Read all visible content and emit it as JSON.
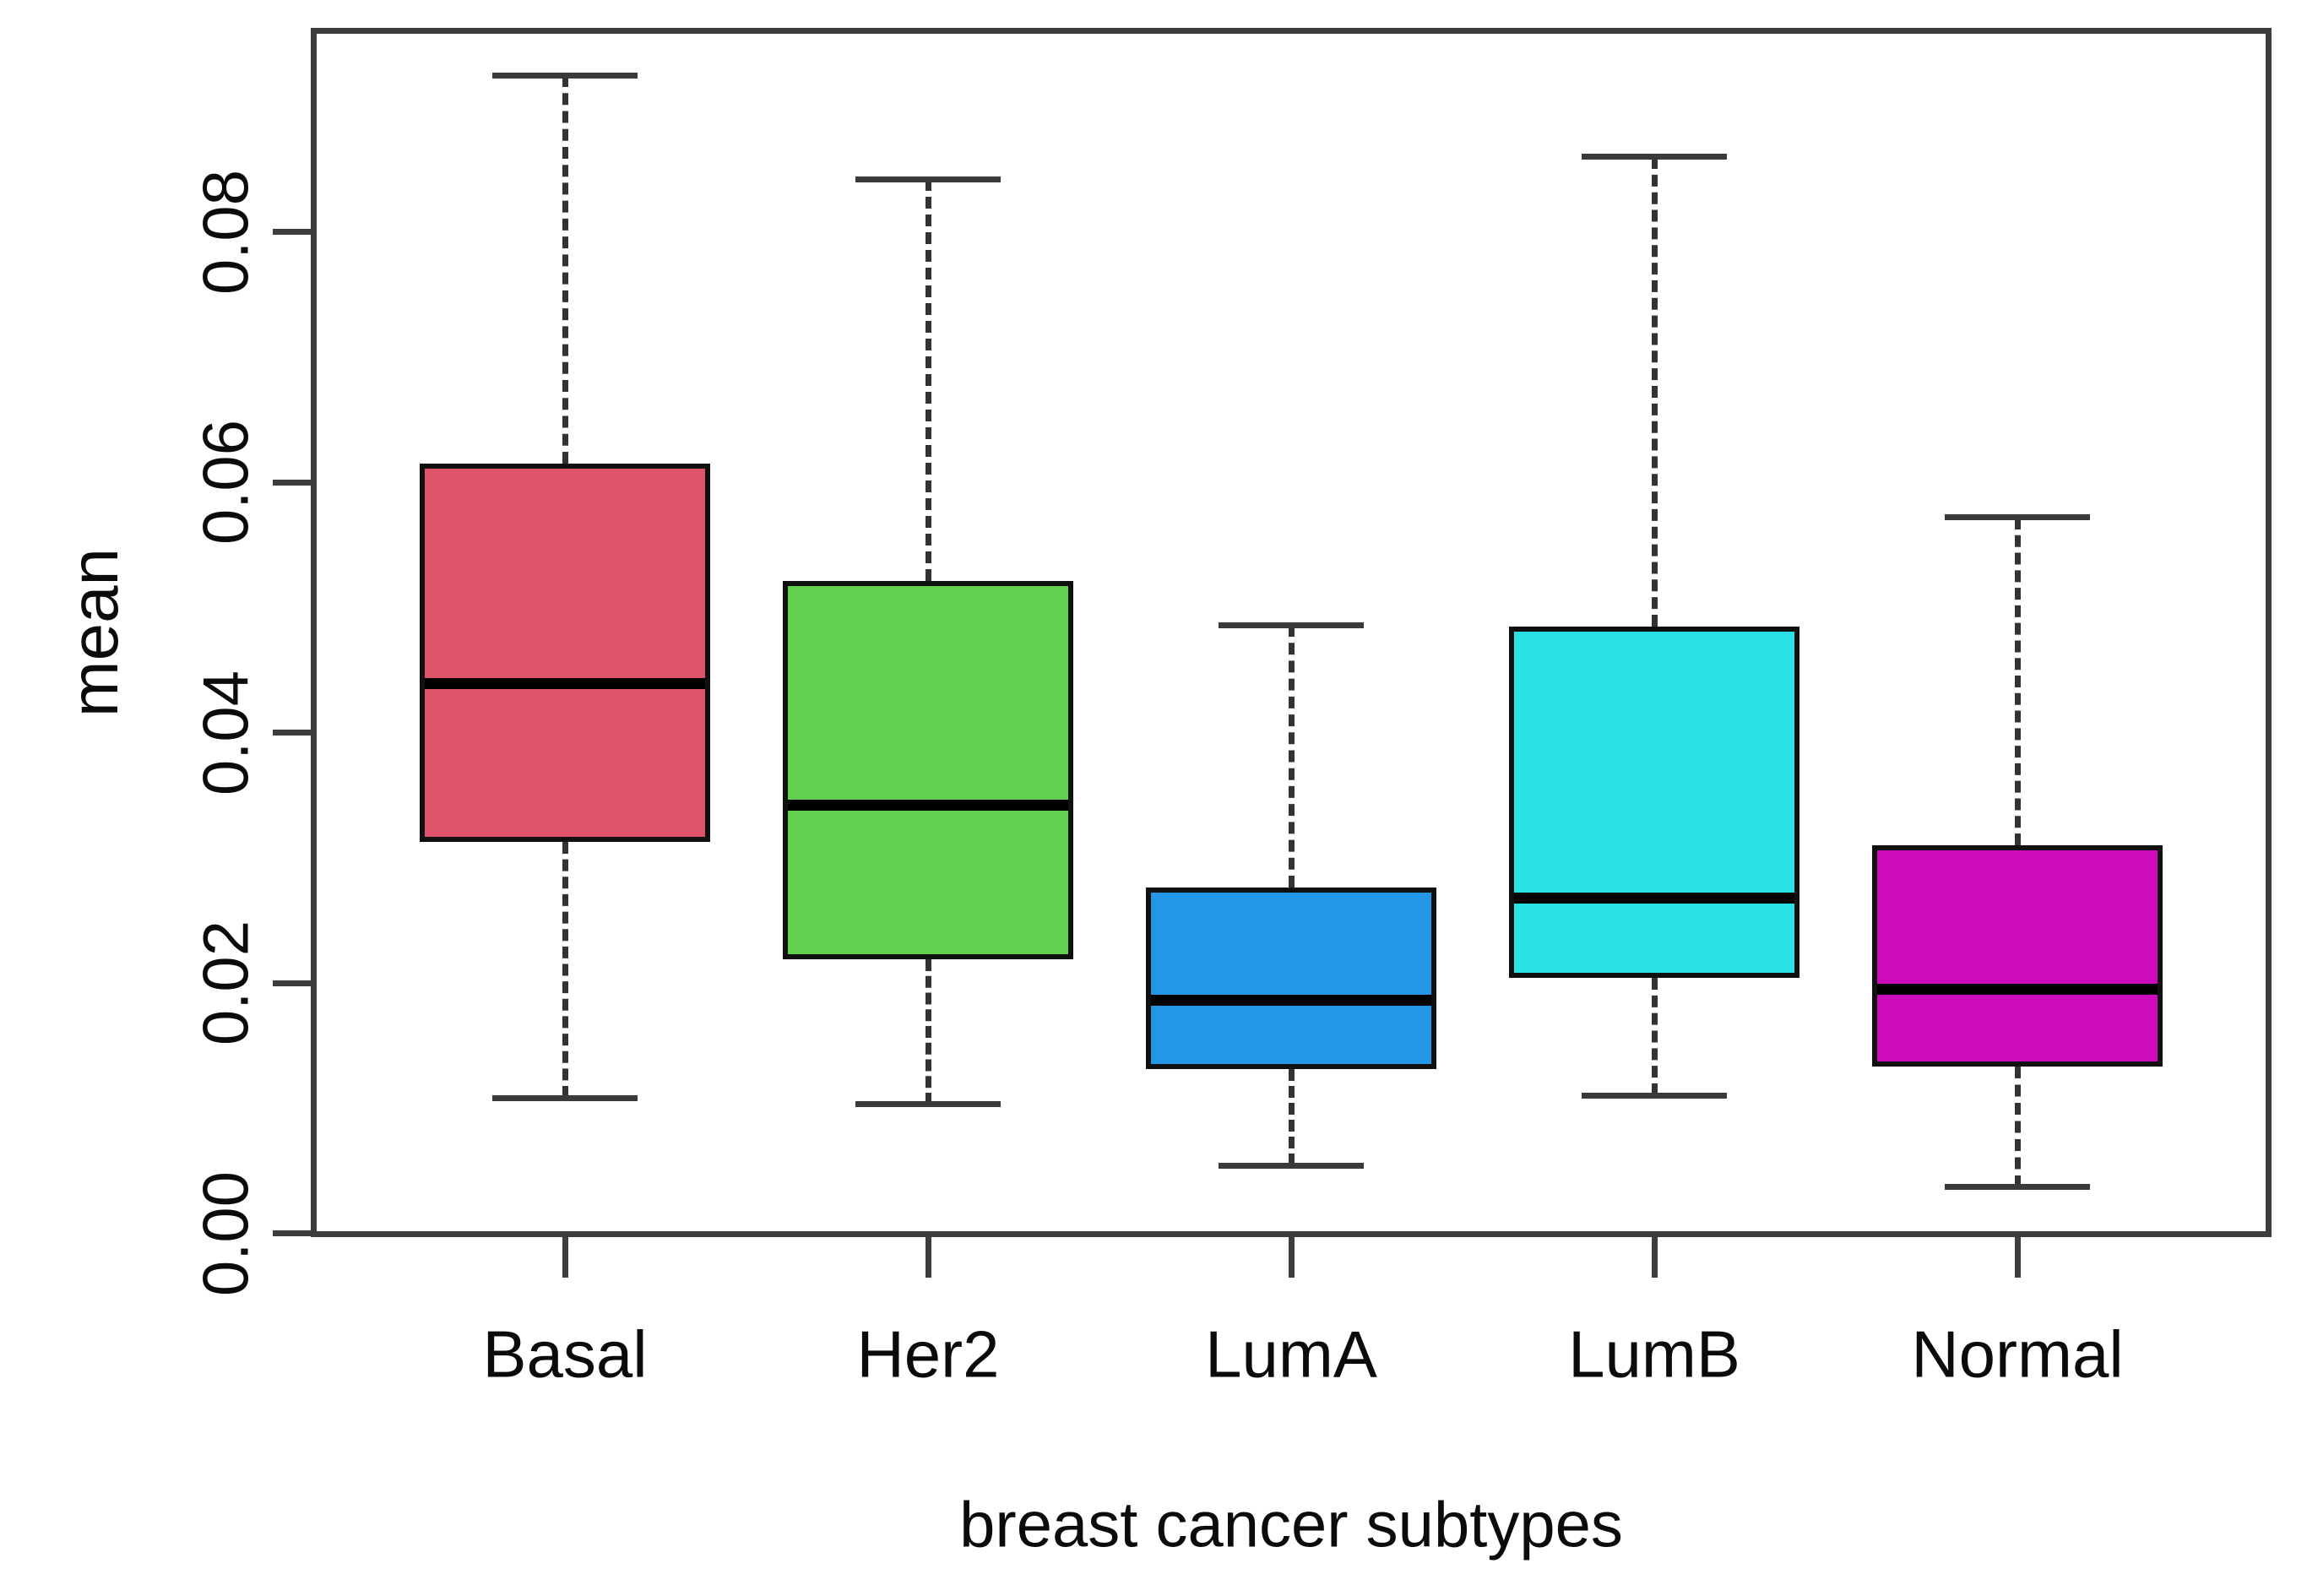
{
  "chart_data": {
    "type": "boxplot",
    "title": "",
    "xlabel": "breast cancer subtypes",
    "ylabel": "mean",
    "categories": [
      "Basal",
      "Her2",
      "LumA",
      "LumB",
      "Normal"
    ],
    "y_ticks": [
      "0.00",
      "0.02",
      "0.04",
      "0.06",
      "0.08"
    ],
    "y_tick_values": [
      0.0,
      0.02,
      0.04,
      0.06,
      0.08
    ],
    "ylim": [
      -0.0003,
      0.0963
    ],
    "grid": false,
    "legend": "none",
    "orientation": "vertical",
    "series": [
      {
        "name": "Basal",
        "color": "#DF536B",
        "whisker_low": 0.0108,
        "q1": 0.0313,
        "median": 0.0439,
        "q3": 0.0615,
        "whisker_high": 0.0925
      },
      {
        "name": "Her2",
        "color": "#61D04F",
        "whisker_low": 0.0103,
        "q1": 0.0219,
        "median": 0.0342,
        "q3": 0.0521,
        "whisker_high": 0.0842
      },
      {
        "name": "LumA",
        "color": "#2297E6",
        "whisker_low": 0.0054,
        "q1": 0.0131,
        "median": 0.0186,
        "q3": 0.0276,
        "whisker_high": 0.0486
      },
      {
        "name": "LumB",
        "color": "#28E2E5",
        "whisker_low": 0.011,
        "q1": 0.0204,
        "median": 0.0268,
        "q3": 0.0485,
        "whisker_high": 0.086
      },
      {
        "name": "Normal",
        "color": "#CD0BBC",
        "whisker_low": 0.0037,
        "q1": 0.0133,
        "median": 0.0195,
        "q3": 0.031,
        "whisker_high": 0.0572
      }
    ],
    "frame_color": "#3d3d3d",
    "whisker_color": "#333333",
    "median_color": "#000000",
    "text_color": "#0b0b0b"
  }
}
